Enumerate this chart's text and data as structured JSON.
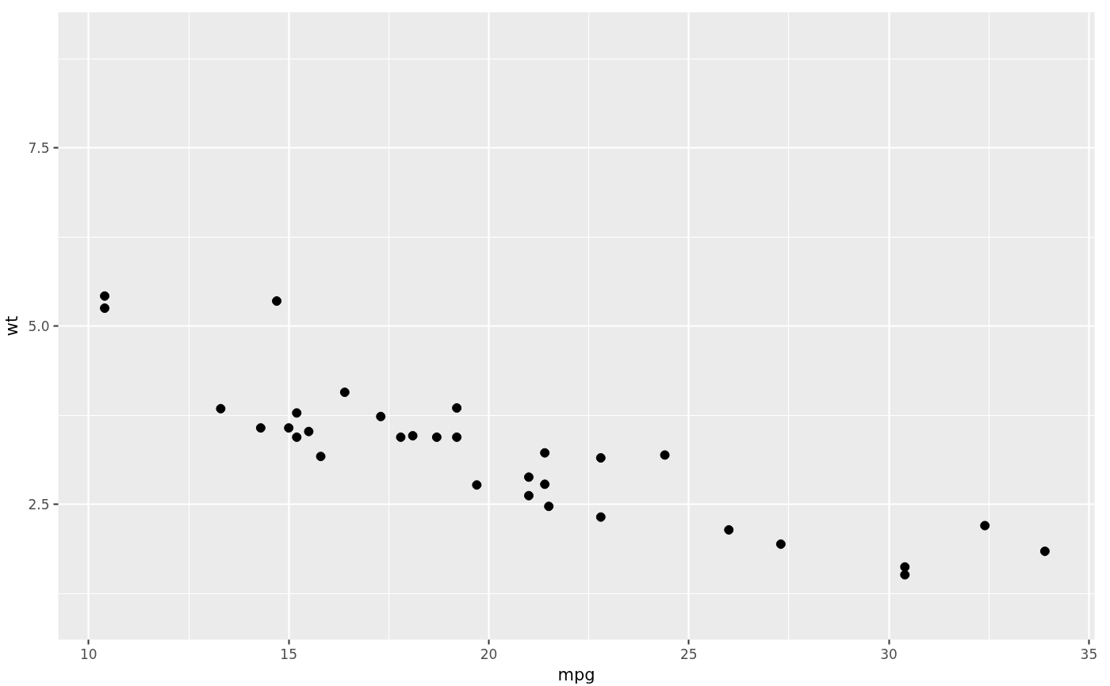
{
  "chart_data": {
    "type": "scatter",
    "xlabel": "mpg",
    "ylabel": "wt",
    "x": [
      21.0,
      21.0,
      22.8,
      21.4,
      18.7,
      18.1,
      14.3,
      24.4,
      22.8,
      19.2,
      17.8,
      16.4,
      17.3,
      15.2,
      10.4,
      10.4,
      14.7,
      32.4,
      30.4,
      33.9,
      21.5,
      15.5,
      15.2,
      13.3,
      19.2,
      27.3,
      26.0,
      30.4,
      15.8,
      19.7,
      15.0,
      21.4
    ],
    "series": [
      {
        "color": "#000000",
        "values": [
          2.62,
          2.88,
          2.32,
          3.22,
          3.44,
          3.46,
          3.57,
          3.19,
          3.15,
          3.44,
          3.44,
          4.07,
          3.73,
          3.78,
          5.25,
          5.42,
          5.35,
          2.2,
          1.62,
          1.84,
          2.47,
          3.52,
          3.44,
          3.84,
          3.85,
          1.94,
          2.14,
          1.51,
          3.17,
          2.77,
          3.57,
          2.78
        ]
      }
    ],
    "xlim": [
      9.24,
      35.14
    ],
    "ylim": [
      0.6,
      9.4
    ],
    "xticks": [
      10,
      15,
      20,
      25,
      30,
      35
    ],
    "yticks": [
      {
        "value": 2.5,
        "label": "2.5"
      },
      {
        "value": 5.0,
        "label": "5.0"
      },
      {
        "value": 7.5,
        "label": "7.5"
      }
    ],
    "grid": true,
    "marker": "circle"
  }
}
